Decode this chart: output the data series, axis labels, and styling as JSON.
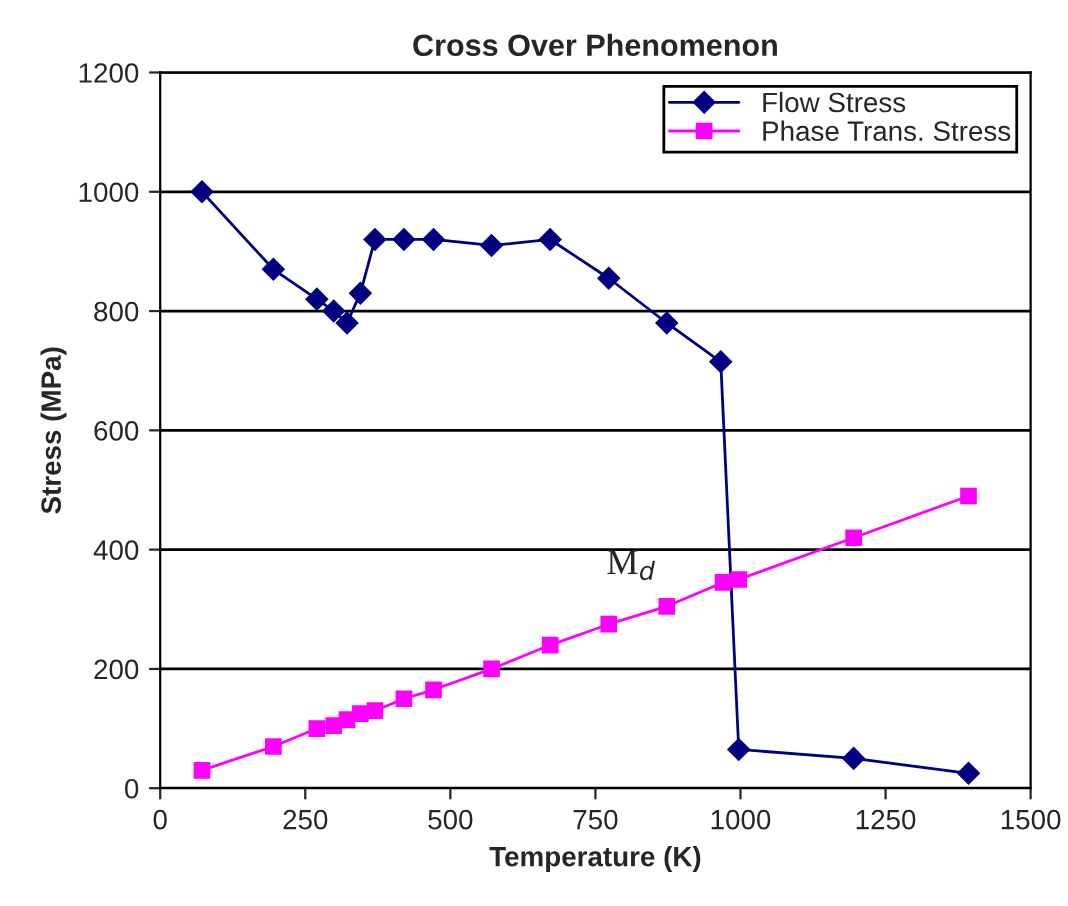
{
  "chart_data": {
    "type": "line",
    "title": "Cross Over Phenomenon",
    "xlabel": "Temperature (K)",
    "ylabel": "Stress (MPa)",
    "xlim": [
      0,
      1500
    ],
    "xticks": [
      0,
      250,
      500,
      750,
      1000,
      1250,
      1500
    ],
    "ylim": [
      0,
      1200
    ],
    "yticks": [
      0,
      200,
      400,
      600,
      800,
      1000,
      1200
    ],
    "grid": "y",
    "legend": "top right",
    "series": [
      {
        "name": "Flow Stress",
        "color": "#000080",
        "marker": "diamond",
        "x": [
          72,
          195,
          270,
          299,
          322,
          345,
          370,
          420,
          471,
          571,
          672,
          773,
          873,
          966,
          997,
          1195,
          1393
        ],
        "values": [
          1000,
          870,
          820,
          800,
          780,
          830,
          920,
          920,
          920,
          910,
          920,
          855,
          780,
          715,
          65,
          50,
          25
        ]
      },
      {
        "name": "Phase Trans. Stress",
        "color": "#ff00ff",
        "marker": "square",
        "x": [
          72,
          195,
          270,
          299,
          322,
          345,
          370,
          420,
          471,
          571,
          672,
          773,
          873,
          970,
          997,
          1195,
          1393
        ],
        "values": [
          30,
          70,
          100,
          105,
          115,
          125,
          130,
          150,
          165,
          200,
          240,
          275,
          305,
          345,
          350,
          420,
          490
        ]
      }
    ],
    "annotations": [
      {
        "text": "M$_{d}$",
        "x": 970,
        "y": 345
      }
    ]
  }
}
